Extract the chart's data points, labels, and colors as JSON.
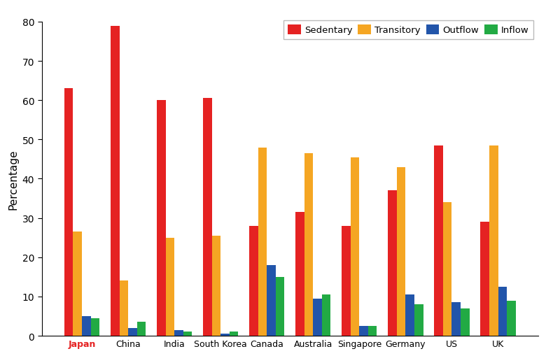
{
  "categories": [
    "Japan",
    "China",
    "India",
    "South Korea",
    "Canada",
    "Australia",
    "Singapore",
    "Germany",
    "US",
    "UK"
  ],
  "sedentary": [
    63,
    79,
    60,
    60.5,
    28,
    31.5,
    28,
    37,
    48.5,
    29
  ],
  "transitory": [
    26.5,
    14,
    25,
    25.5,
    48,
    46.5,
    45.5,
    43,
    34,
    48.5
  ],
  "outflow": [
    5,
    2,
    1.5,
    0.5,
    18,
    9.5,
    2.5,
    10.5,
    8.5,
    12.5
  ],
  "inflow": [
    4.5,
    3.5,
    1,
    1,
    15,
    10.5,
    2.5,
    8,
    7,
    9
  ],
  "colors": {
    "sedentary": "#e52222",
    "transitory": "#f5a623",
    "outflow": "#2255aa",
    "inflow": "#22aa44"
  },
  "ylabel": "Percentage",
  "ylim": [
    0,
    80
  ],
  "yticks": [
    0,
    10,
    20,
    30,
    40,
    50,
    60,
    70,
    80
  ],
  "legend_labels": [
    "Sedentary",
    "Transitory",
    "Outflow",
    "Inflow"
  ],
  "japan_color": "#e52222"
}
